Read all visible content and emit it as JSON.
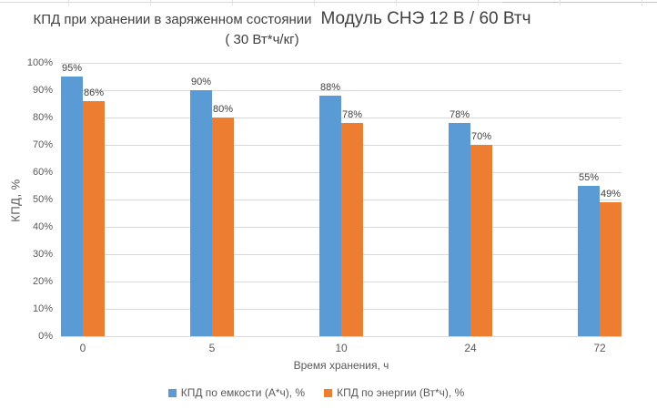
{
  "chart_data": {
    "type": "bar",
    "title": "КПД при хранении в заряженном состоянии",
    "title_secondary": "Модуль СНЭ 12 В / 60 Втч",
    "subtitle": "( 30 Вт*ч/кг)",
    "categories": [
      "0",
      "5",
      "10",
      "24",
      "72"
    ],
    "series": [
      {
        "name": "КПД по емкости (А*ч), %",
        "color": "#5B9BD5",
        "values": [
          95,
          90,
          88,
          78,
          55
        ]
      },
      {
        "name": "КПД по энергии (Вт*ч), %",
        "color": "#ED7D31",
        "values": [
          86,
          80,
          78,
          70,
          49
        ]
      }
    ],
    "data_label_suffix": "%",
    "xlabel": "Время хранения, ч",
    "ylabel": "КПД, %",
    "ylim": [
      0,
      100
    ],
    "ytick_step": 10,
    "ytick_suffix": "%",
    "grid": true,
    "legend_position": "bottom",
    "colors": {
      "gridline": "#D9D9D9",
      "axis_line": "#D9D9D9",
      "tick_text": "#595959",
      "data_label_text": "#404040",
      "title_text": "#404040",
      "background": "#FFFFFF"
    }
  }
}
